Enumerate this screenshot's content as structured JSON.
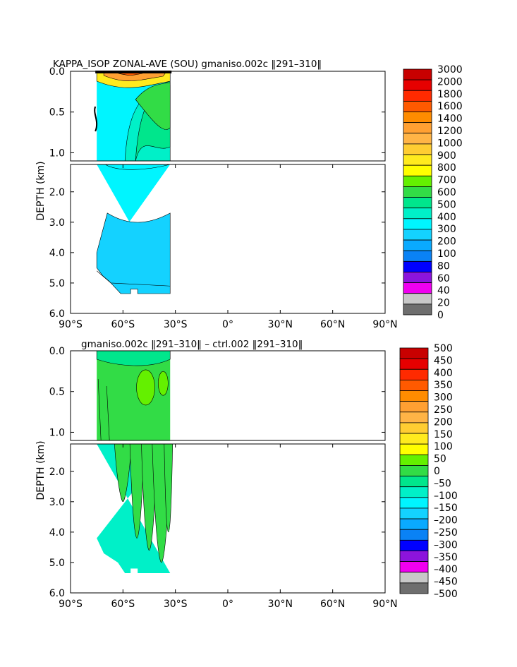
{
  "chart_data": [
    {
      "type": "heatmap",
      "title": "KAPPA_ISOP ZONAL-AVE (SOU) gmaniso.002c ‖291–310‖",
      "ylabel": "DEPTH (km)",
      "xlabel": "",
      "x_ticks": [
        "90°S",
        "60°S",
        "30°S",
        "0°",
        "30°N",
        "60°N",
        "90°N"
      ],
      "upper_y_ticks": [
        "0.0",
        "0.5",
        "1.0"
      ],
      "lower_y_ticks": [
        "2.0",
        "3.0",
        "4.0",
        "5.0",
        "6.0"
      ],
      "x_range": [
        -90,
        90
      ],
      "upper_depth_range": [
        0.0,
        1.1
      ],
      "lower_depth_range": [
        1.1,
        6.0
      ],
      "colorbar_levels": [
        "3000",
        "2000",
        "1800",
        "1600",
        "1400",
        "1200",
        "1000",
        "900",
        "800",
        "700",
        "600",
        "500",
        "400",
        "300",
        "200",
        "100",
        "80",
        "60",
        "40",
        "20",
        "0"
      ],
      "colorbar_colors": [
        "#c80000",
        "#e60000",
        "#ff2a00",
        "#ff5a00",
        "#ff8c00",
        "#ffa032",
        "#ffb446",
        "#ffcd32",
        "#ffeb1e",
        "#ffff00",
        "#64f000",
        "#32dc46",
        "#00e68c",
        "#00f0c8",
        "#00f5ff",
        "#14d2ff",
        "#0aaaff",
        "#0a82f5",
        "#0000ff",
        "#8c14dc",
        "#f000f0",
        "#c8c8c8",
        "#6e6e6e"
      ],
      "data_extent_lat": [
        -75,
        -33
      ],
      "upper_field": {
        "surface": 1400,
        "mid": 700,
        "deep": 400
      },
      "lower_field": {
        "mid": 400,
        "deep": 300
      }
    },
    {
      "type": "heatmap",
      "title": "gmaniso.002c ‖291–310‖ – ctrl.002 ‖291–310‖",
      "ylabel": "DEPTH (km)",
      "xlabel": "",
      "x_ticks": [
        "90°S",
        "60°S",
        "30°S",
        "0°",
        "30°N",
        "60°N",
        "90°N"
      ],
      "upper_y_ticks": [
        "0.0",
        "0.5",
        "1.0"
      ],
      "lower_y_ticks": [
        "2.0",
        "3.0",
        "4.0",
        "5.0",
        "6.0"
      ],
      "x_range": [
        -90,
        90
      ],
      "upper_depth_range": [
        0.0,
        1.1
      ],
      "lower_depth_range": [
        1.1,
        6.0
      ],
      "colorbar_levels": [
        "500",
        "450",
        "400",
        "350",
        "300",
        "250",
        "200",
        "150",
        "100",
        "50",
        "0",
        "–50",
        "–100",
        "–150",
        "–200",
        "–250",
        "–300",
        "–350",
        "–400",
        "–450",
        "–500"
      ],
      "colorbar_colors": [
        "#c80000",
        "#e60000",
        "#ff2a00",
        "#ff5a00",
        "#ff8c00",
        "#ffa032",
        "#ffb446",
        "#ffcd32",
        "#ffeb1e",
        "#ffff00",
        "#64f000",
        "#32dc46",
        "#00e68c",
        "#00f0c8",
        "#00f5ff",
        "#14d2ff",
        "#0aaaff",
        "#0a82f5",
        "#0000ff",
        "#8c14dc",
        "#f000f0",
        "#c8c8c8",
        "#6e6e6e"
      ],
      "data_extent_lat": [
        -75,
        -33
      ],
      "upper_field": {
        "mostly": 50,
        "pockets": 80
      },
      "lower_field": {
        "mostly": -20,
        "pockets": 40
      }
    }
  ]
}
